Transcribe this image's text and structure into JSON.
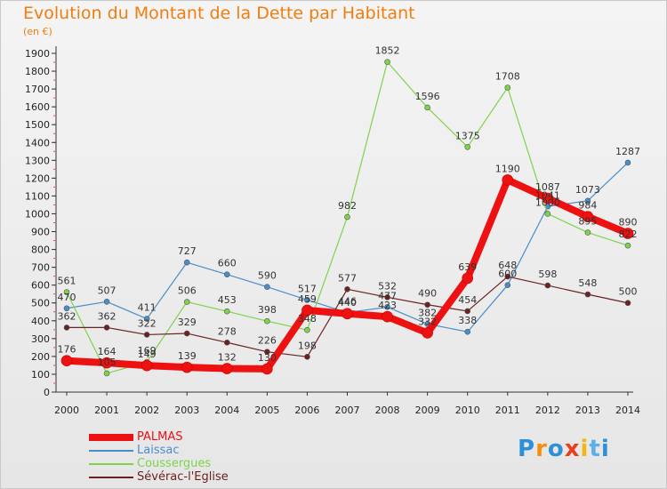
{
  "title": "Evolution du Montant de la Dette par Habitant",
  "unit": "(en €)",
  "logo": {
    "text": "Proxiti",
    "colors": [
      "#2f8fd8",
      "#f29111",
      "#2f8fd8",
      "#e8401c",
      "#f2b711",
      "#5bb0e8",
      "#2f8fd8"
    ]
  },
  "chart_data": {
    "type": "line",
    "x": [
      "2000",
      "2001",
      "2002",
      "2003",
      "2004",
      "2005",
      "2006",
      "2007",
      "2008",
      "2009",
      "2010",
      "2011",
      "2012",
      "2013",
      "2014"
    ],
    "ylim": [
      0,
      1900
    ],
    "yticks": [
      0,
      100,
      200,
      300,
      400,
      500,
      600,
      700,
      800,
      900,
      1000,
      1100,
      1200,
      1300,
      1400,
      1500,
      1600,
      1700,
      1800,
      1900
    ],
    "grid": false,
    "legend_position": "bottom-left",
    "series": [
      {
        "name": "PALMAS",
        "color": "#ee1111",
        "width": 8,
        "marker": 6,
        "values": [
          176,
          164,
          149,
          139,
          132,
          130,
          459,
          440,
          423,
          332,
          639,
          1190,
          1087,
          984,
          890
        ]
      },
      {
        "name": "Laissac",
        "color": "#4a8ec8",
        "width": 1.2,
        "marker": 3,
        "values": [
          470,
          507,
          411,
          727,
          660,
          590,
          517,
          446,
          477,
          382,
          338,
          600,
          1041,
          1073,
          1287
        ]
      },
      {
        "name": "Coussergues",
        "color": "#7ed34a",
        "width": 1.2,
        "marker": 3,
        "values": [
          561,
          105,
          169,
          506,
          453,
          398,
          348,
          982,
          1852,
          1596,
          1375,
          1708,
          1000,
          895,
          822
        ]
      },
      {
        "name": "Sévérac-l'Eglise",
        "color": "#6b2121",
        "width": 1.2,
        "marker": 3,
        "values": [
          362,
          362,
          322,
          329,
          278,
          226,
          198,
          577,
          532,
          490,
          454,
          648,
          598,
          548,
          500
        ]
      }
    ]
  }
}
